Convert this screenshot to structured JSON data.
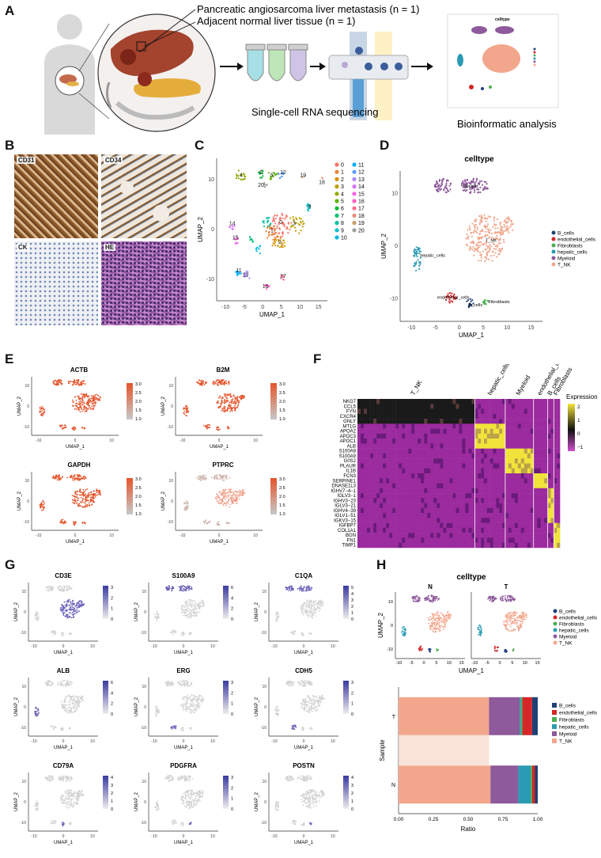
{
  "panels": {
    "A": "A",
    "B": "B",
    "C": "C",
    "D": "D",
    "E": "E",
    "F": "F",
    "G": "G",
    "H": "H"
  },
  "panelA": {
    "legend_line1": "Pancreatic angiosarcoma liver metastasis (n = 1)",
    "legend_line2": "Adjacent normal liver tissue (n = 1)",
    "scrnaseq_label": "Single-cell RNA sequencing",
    "bioinfo_label": "Bioinformatic analysis",
    "mini_title": "celltype"
  },
  "panelB": {
    "tiles": [
      "CD31",
      "CD34",
      "CK",
      "HE"
    ]
  },
  "panelC": {
    "xlabel": "UMAP_1",
    "ylabel": "UMAP_2",
    "xticks": [
      "-10",
      "-5",
      "0",
      "5",
      "10",
      "15"
    ],
    "yticks": [
      "10",
      "0",
      "-10"
    ],
    "clusters": [
      "0",
      "1",
      "2",
      "3",
      "4",
      "5",
      "6",
      "7",
      "8",
      "9",
      "10",
      "11",
      "12",
      "13",
      "14",
      "15",
      "16",
      "17",
      "18",
      "19",
      "20"
    ],
    "colors": [
      "#f8766d",
      "#e8853b",
      "#d39200",
      "#b79f00",
      "#93aa00",
      "#5eb300",
      "#00ba38",
      "#00bf74",
      "#00c19f",
      "#00bfc4",
      "#00b9e3",
      "#00adfa",
      "#619cff",
      "#ae87ff",
      "#db72fb",
      "#f564e3",
      "#ff61c3",
      "#ff6c91",
      "#e88e7a",
      "#c7a06a",
      "#9e9e9e"
    ],
    "on_plot_labels": [
      "4",
      "6",
      "5",
      "12",
      "19",
      "18",
      "20",
      "0",
      "1",
      "2",
      "3",
      "9",
      "14",
      "15",
      "11",
      "13",
      "16",
      "17"
    ]
  },
  "panelD": {
    "title": "celltype",
    "xlabel": "UMAP_1",
    "ylabel": "UMAP_2",
    "xticks": [
      "-10",
      "-5",
      "0",
      "5",
      "10",
      "15"
    ],
    "yticks": [
      "10",
      "0",
      "-10"
    ],
    "legend": [
      {
        "name": "B_cells",
        "color": "#1f3f77"
      },
      {
        "name": "endothelial_cells",
        "color": "#d62728"
      },
      {
        "name": "Fibroblasts",
        "color": "#4caf50"
      },
      {
        "name": "hepatic_cells",
        "color": "#2a9bb3"
      },
      {
        "name": "Myeloid",
        "color": "#8e5a9b"
      },
      {
        "name": "T_NK",
        "color": "#f2a78d"
      }
    ],
    "labels": {
      "myeloid": "Myeloid",
      "tnk": "T_NK",
      "hepatic": "hepatic_cells",
      "endo": "endothelial_cells",
      "b": "B_cells",
      "fib": "Fibroblasts"
    }
  },
  "panelE": {
    "genes": [
      "ACTB",
      "B2M",
      "GAPDH",
      "PTPRC"
    ],
    "scale": [
      "3.0",
      "2.5",
      "2.0",
      "1.5",
      "1.0"
    ],
    "xlabel": "UMAP_1",
    "ylabel": "UMAP_2",
    "xticks": [
      "-10",
      "0",
      "10"
    ],
    "yticks": [
      "10",
      "0",
      "-10"
    ]
  },
  "panelF": {
    "groups": [
      "T_NK",
      "hepatic_cells",
      "Myeloid",
      "endothelial_cells",
      "B_cells",
      "Fibroblasts"
    ],
    "genes": [
      "NKG7",
      "CCL5",
      "FYN",
      "CXCR4",
      "GNLY",
      "MT1G",
      "APOA2",
      "APOC3",
      "APOC1",
      "ALB",
      "S100A8",
      "S100A9",
      "G0S2",
      "PLAUR",
      "IL1B",
      "FCN3",
      "SERPINE1",
      "DNASE1L3",
      "IGHV7−4−1",
      "IGLV3−1",
      "IGHV3−23",
      "IGLV3−21",
      "IGHV4−39",
      "IGLV1−51",
      "IGKV3−15",
      "IGFBP7",
      "COL1A1",
      "BGN",
      "FN1",
      "TIMP1"
    ],
    "legend_title": "Expression",
    "legend_ticks": [
      "2",
      "1",
      "0",
      "−1"
    ]
  },
  "panelG": {
    "genes": [
      "CD3E",
      "S100A9",
      "C1QA",
      "ALB",
      "ERG",
      "CDH5",
      "CD79A",
      "PDGFRA",
      "POSTN"
    ],
    "scales": [
      [
        "3",
        "2",
        "1",
        "0"
      ],
      [
        "6",
        "4",
        "2",
        "0"
      ],
      [
        "5",
        "4",
        "3",
        "2",
        "1",
        "0"
      ],
      [
        "6",
        "4",
        "2",
        "0"
      ],
      [
        "3",
        "2",
        "1",
        "0"
      ],
      [
        "3",
        "2",
        "1",
        "0"
      ],
      [
        "4",
        "3",
        "2",
        "1",
        "0"
      ],
      [
        "3",
        "2",
        "1",
        "0"
      ],
      [
        "4",
        "3",
        "2",
        "1",
        "0"
      ]
    ],
    "xlabel": "UMAP_1",
    "ylabel": "UMAP_2",
    "xticks": [
      "-10",
      "0",
      "10"
    ],
    "yticks": [
      "10",
      "0",
      "-10"
    ]
  },
  "panelH": {
    "title": "celltype",
    "facets": [
      "N",
      "T"
    ],
    "xlabel": "UMAP_1",
    "ylabel": "UMAP_2",
    "xticks": [
      "-10",
      "-5",
      "0",
      "5",
      "10",
      "15"
    ],
    "yticks": [
      "10",
      "0",
      "-10"
    ],
    "legend": [
      "B_cells",
      "endothelial_cells",
      "Fibroblasts",
      "hepatic_cells",
      "Myeloid",
      "T_NK"
    ]
  },
  "chart_data": {
    "type": "bar",
    "title": "",
    "xlabel": "Ratio",
    "ylabel": "Sample",
    "categories": [
      "T",
      "N"
    ],
    "xlim": [
      0,
      1
    ],
    "xticks": [
      "0.00",
      "0.25",
      "0.50",
      "0.75",
      "1.00"
    ],
    "series": [
      {
        "name": "T_NK",
        "color": "#f2a78d",
        "values": [
          0.65,
          0.66
        ]
      },
      {
        "name": "Myeloid",
        "color": "#8e5a9b",
        "values": [
          0.22,
          0.2
        ]
      },
      {
        "name": "hepatic_cells",
        "color": "#2a9bb3",
        "values": [
          0.01,
          0.09
        ]
      },
      {
        "name": "Fibroblasts",
        "color": "#4caf50",
        "values": [
          0.01,
          0.01
        ]
      },
      {
        "name": "endothelial_cells",
        "color": "#d62728",
        "values": [
          0.07,
          0.02
        ]
      },
      {
        "name": "B_cells",
        "color": "#1f3f77",
        "values": [
          0.04,
          0.02
        ]
      }
    ]
  }
}
